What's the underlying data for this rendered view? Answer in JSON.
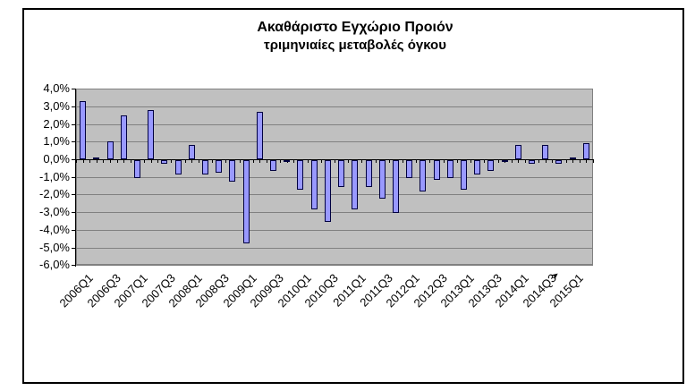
{
  "window": {
    "background_color": "#ffffff",
    "frame_border_color": "#000000"
  },
  "chart_data": {
    "type": "bar",
    "title": "Ακαθάριστο Εγχώριο Προιόν",
    "subtitle": "τριμηνιαίες μεταβολές όγκου",
    "unit": "percent_quarter_on_quarter",
    "categories": [
      "2006Q1",
      "2006Q2",
      "2006Q3",
      "2006Q4",
      "2007Q1",
      "2007Q2",
      "2007Q3",
      "2007Q4",
      "2008Q1",
      "2008Q2",
      "2008Q3",
      "2008Q4",
      "2009Q1",
      "2009Q2",
      "2009Q3",
      "2009Q4",
      "2010Q1",
      "2010Q2",
      "2010Q3",
      "2010Q4",
      "2011Q1",
      "2011Q2",
      "2011Q3",
      "2011Q4",
      "2012Q1",
      "2012Q2",
      "2012Q3",
      "2012Q4",
      "2013Q1",
      "2013Q2",
      "2013Q3",
      "2013Q4",
      "2014Q1",
      "2014Q2",
      "2014Q3",
      "2014Q4",
      "2015Q1",
      "2015Q2"
    ],
    "values": [
      3.3,
      0.1,
      1.0,
      2.5,
      -1.0,
      2.8,
      -0.2,
      -0.8,
      0.8,
      -0.8,
      -0.7,
      -1.2,
      -4.7,
      2.7,
      -0.6,
      -0.1,
      -1.7,
      -2.8,
      -3.5,
      -1.5,
      -2.8,
      -1.5,
      -2.2,
      -3.0,
      -1.0,
      -1.8,
      -1.1,
      -1.0,
      -1.7,
      -0.8,
      -0.6,
      -0.1,
      0.8,
      -0.2,
      0.8,
      -0.2,
      0.1,
      0.9
    ],
    "x_tick_labels_shown": [
      "2006Q1",
      "2006Q3",
      "2007Q1",
      "2007Q3",
      "2008Q1",
      "2008Q3",
      "2009Q1",
      "2009Q3",
      "2010Q1",
      "2010Q3",
      "2011Q1",
      "2011Q3",
      "2012Q1",
      "2012Q3",
      "2013Q1",
      "2013Q3",
      "2014Q1",
      "2014Q3",
      "2015Q1"
    ],
    "x_label_every_n": 2,
    "y_tick_labels": [
      "4,0%",
      "3,0%",
      "2,0%",
      "1,0%",
      "0,0%",
      "-1,0%",
      "-2,0%",
      "-3,0%",
      "-4,0%",
      "-5,0%",
      "-6,0%"
    ],
    "y_tick_values": [
      4,
      3,
      2,
      1,
      0,
      -1,
      -2,
      -3,
      -4,
      -5,
      -6
    ],
    "ylim": [
      -6,
      4
    ],
    "grid": true,
    "legend": false,
    "plot_bg_color": "#c0c0c0",
    "gridline_color": "#808080",
    "bar_fill_color": "#9999ff",
    "bar_border_color": "#000040",
    "axis_color": "#000000"
  }
}
